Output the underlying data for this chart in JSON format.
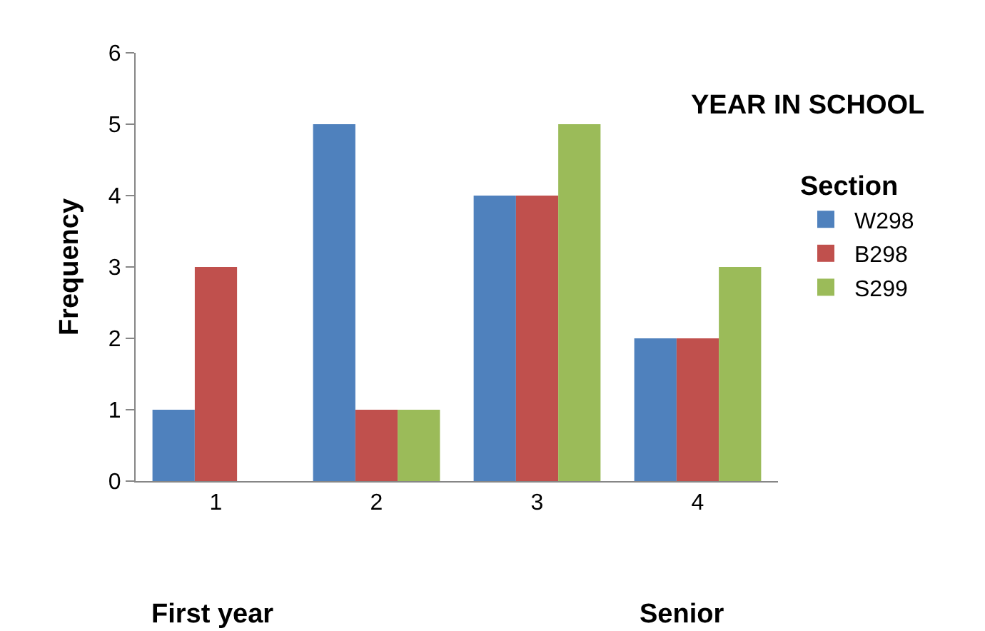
{
  "chart_data": {
    "type": "bar",
    "title": "YEAR IN SCHOOL",
    "ylabel": "Frequency",
    "legend_title": "Section",
    "categories": [
      "1",
      "2",
      "3",
      "4"
    ],
    "series": [
      {
        "name": "W298",
        "color": "#4f81bd",
        "values": [
          1,
          5,
          4,
          2
        ]
      },
      {
        "name": "B298",
        "color": "#c0504d",
        "values": [
          3,
          1,
          4,
          2
        ]
      },
      {
        "name": "S299",
        "color": "#9bbb59",
        "values": [
          0,
          1,
          5,
          3
        ]
      }
    ],
    "ylim": [
      0,
      6
    ],
    "yticks": [
      0,
      1,
      2,
      3,
      4,
      5,
      6
    ],
    "grid": false,
    "legend": "right",
    "annotations": [
      "First year",
      "Senior"
    ]
  }
}
